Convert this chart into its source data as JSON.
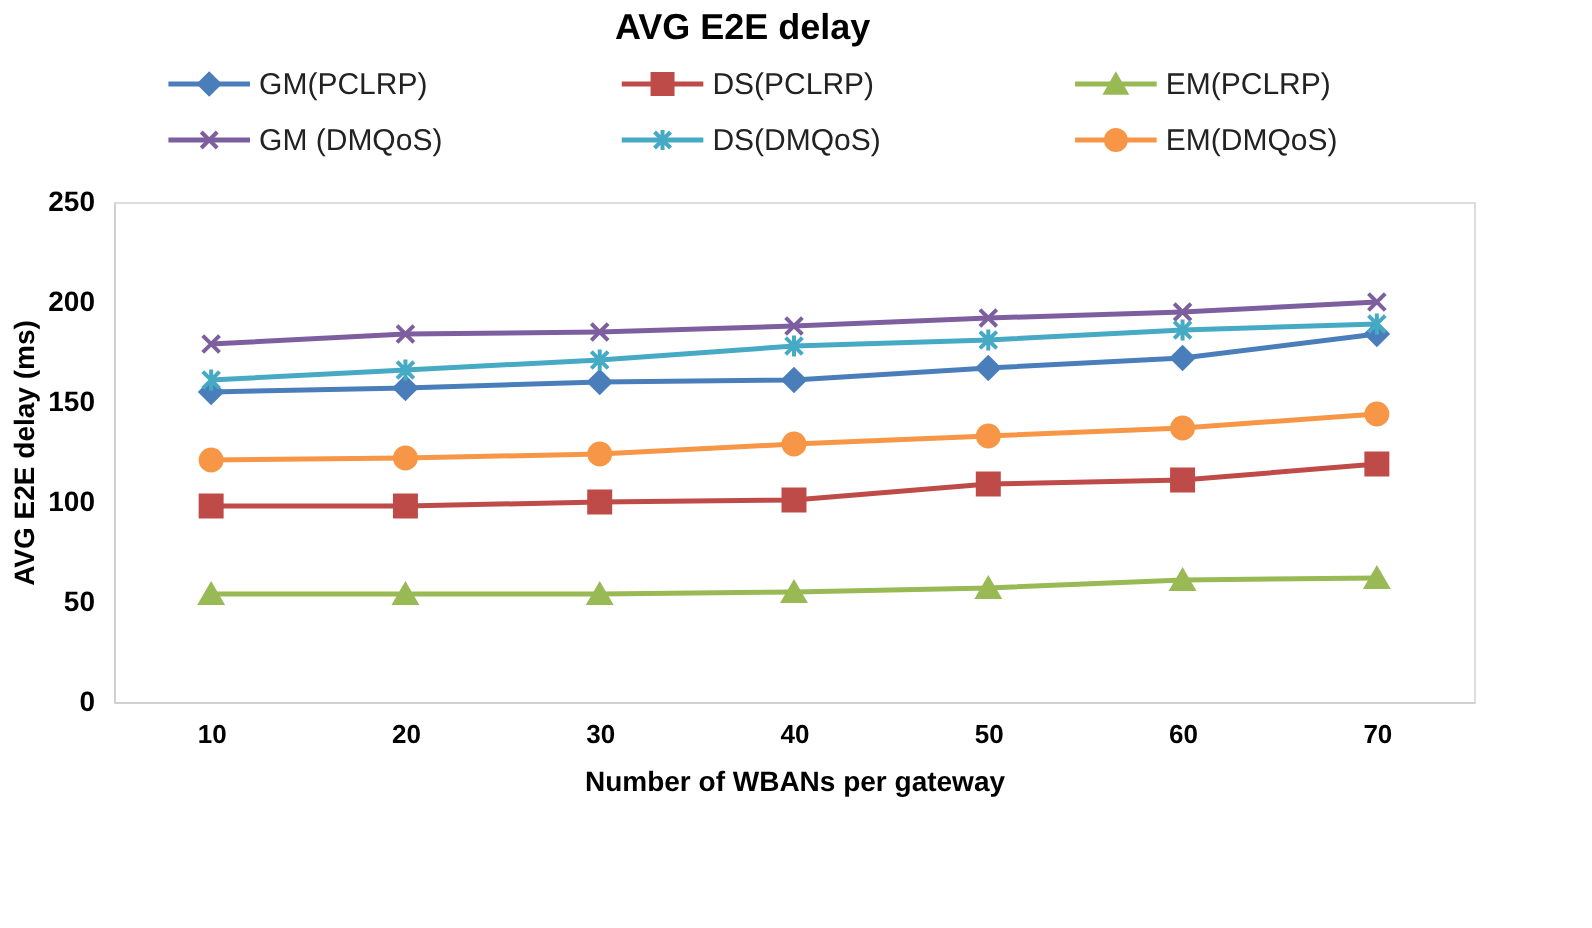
{
  "chart_data": {
    "type": "line",
    "title": "AVG E2E delay",
    "xlabel": "Number of  WBANs per gateway",
    "ylabel": "AVG E2E delay (ms)",
    "categories": [
      "10",
      "20",
      "30",
      "40",
      "50",
      "60",
      "70"
    ],
    "series": [
      {
        "name": "GM(PCLRP)",
        "color": "#4a7ebb",
        "marker": "diamond",
        "values": [
          155,
          157,
          160,
          161,
          167,
          172,
          184
        ]
      },
      {
        "name": "DS(PCLRP)",
        "color": "#be4b48",
        "marker": "square",
        "values": [
          98,
          98,
          100,
          101,
          109,
          111,
          119
        ]
      },
      {
        "name": "EM(PCLRP)",
        "color": "#98b954",
        "marker": "triangle",
        "values": [
          54,
          54,
          54,
          55,
          57,
          61,
          62
        ]
      },
      {
        "name": "GM (DMQoS)",
        "color": "#7d5fa0",
        "marker": "cross",
        "values": [
          179,
          184,
          185,
          188,
          192,
          195,
          200
        ]
      },
      {
        "name": "DS(DMQoS)",
        "color": "#46aac5",
        "marker": "cross",
        "values": [
          161,
          166,
          171,
          178,
          181,
          186,
          189
        ]
      },
      {
        "name": "EM(DMQoS)",
        "color": "#f79646",
        "marker": "circle",
        "values": [
          121,
          122,
          124,
          129,
          133,
          137,
          144
        ]
      }
    ],
    "ylim": [
      0,
      250
    ],
    "yticks": [
      0,
      50,
      100,
      150,
      200,
      250
    ],
    "grid": false,
    "legend": "top",
    "line_style": "solid"
  }
}
